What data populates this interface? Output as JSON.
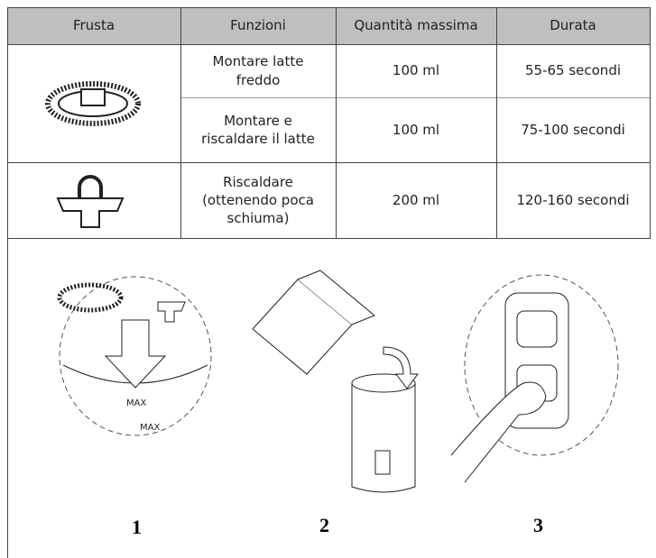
{
  "table": {
    "header": [
      "Frusta",
      "Funzioni",
      "Quantità massima",
      "Durata"
    ],
    "rows": [
      [
        "Montare latte freddo",
        "100 ml",
        "55-65 secondi"
      ],
      [
        "Montare e riscaldare il latte",
        "100 ml",
        "75-100 secondi"
      ],
      [
        "Riscaldare (ottenendo poca schiuma)",
        "200 ml",
        "120-160 secondi"
      ]
    ]
  },
  "steps": [
    "1",
    "2",
    "3"
  ]
}
